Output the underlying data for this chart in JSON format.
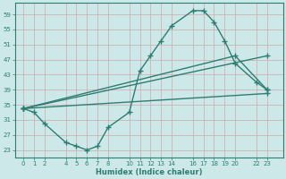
{
  "xlabel": "Humidex (Indice chaleur)",
  "bg_color": "#cce8e8",
  "grid_color": "#aacccc",
  "line_color": "#2e7d72",
  "line_width": 1.0,
  "marker": "+",
  "marker_size": 4,
  "marker_lw": 1.0,
  "ylim": [
    21,
    62
  ],
  "yticks": [
    23,
    27,
    31,
    35,
    39,
    43,
    47,
    51,
    55,
    59
  ],
  "xticks": [
    0,
    1,
    2,
    4,
    5,
    6,
    7,
    8,
    10,
    11,
    12,
    13,
    14,
    16,
    17,
    18,
    19,
    20,
    22,
    23
  ],
  "xlim": [
    -0.8,
    24.5
  ],
  "line1_x": [
    0,
    1,
    2,
    4,
    5,
    6,
    7,
    8,
    10,
    11,
    12,
    13,
    14,
    16,
    17,
    18,
    19,
    20,
    22,
    23
  ],
  "line1_y": [
    34,
    33,
    30,
    25,
    24,
    23,
    24,
    29,
    33,
    44,
    48,
    52,
    56,
    60,
    60,
    57,
    52,
    46,
    41,
    39
  ],
  "line2_x": [
    0,
    23
  ],
  "line2_y": [
    34,
    48
  ],
  "line3_x": [
    0,
    20,
    23
  ],
  "line3_y": [
    34,
    48,
    39
  ],
  "line4_x": [
    0,
    23
  ],
  "line4_y": [
    34,
    38
  ]
}
